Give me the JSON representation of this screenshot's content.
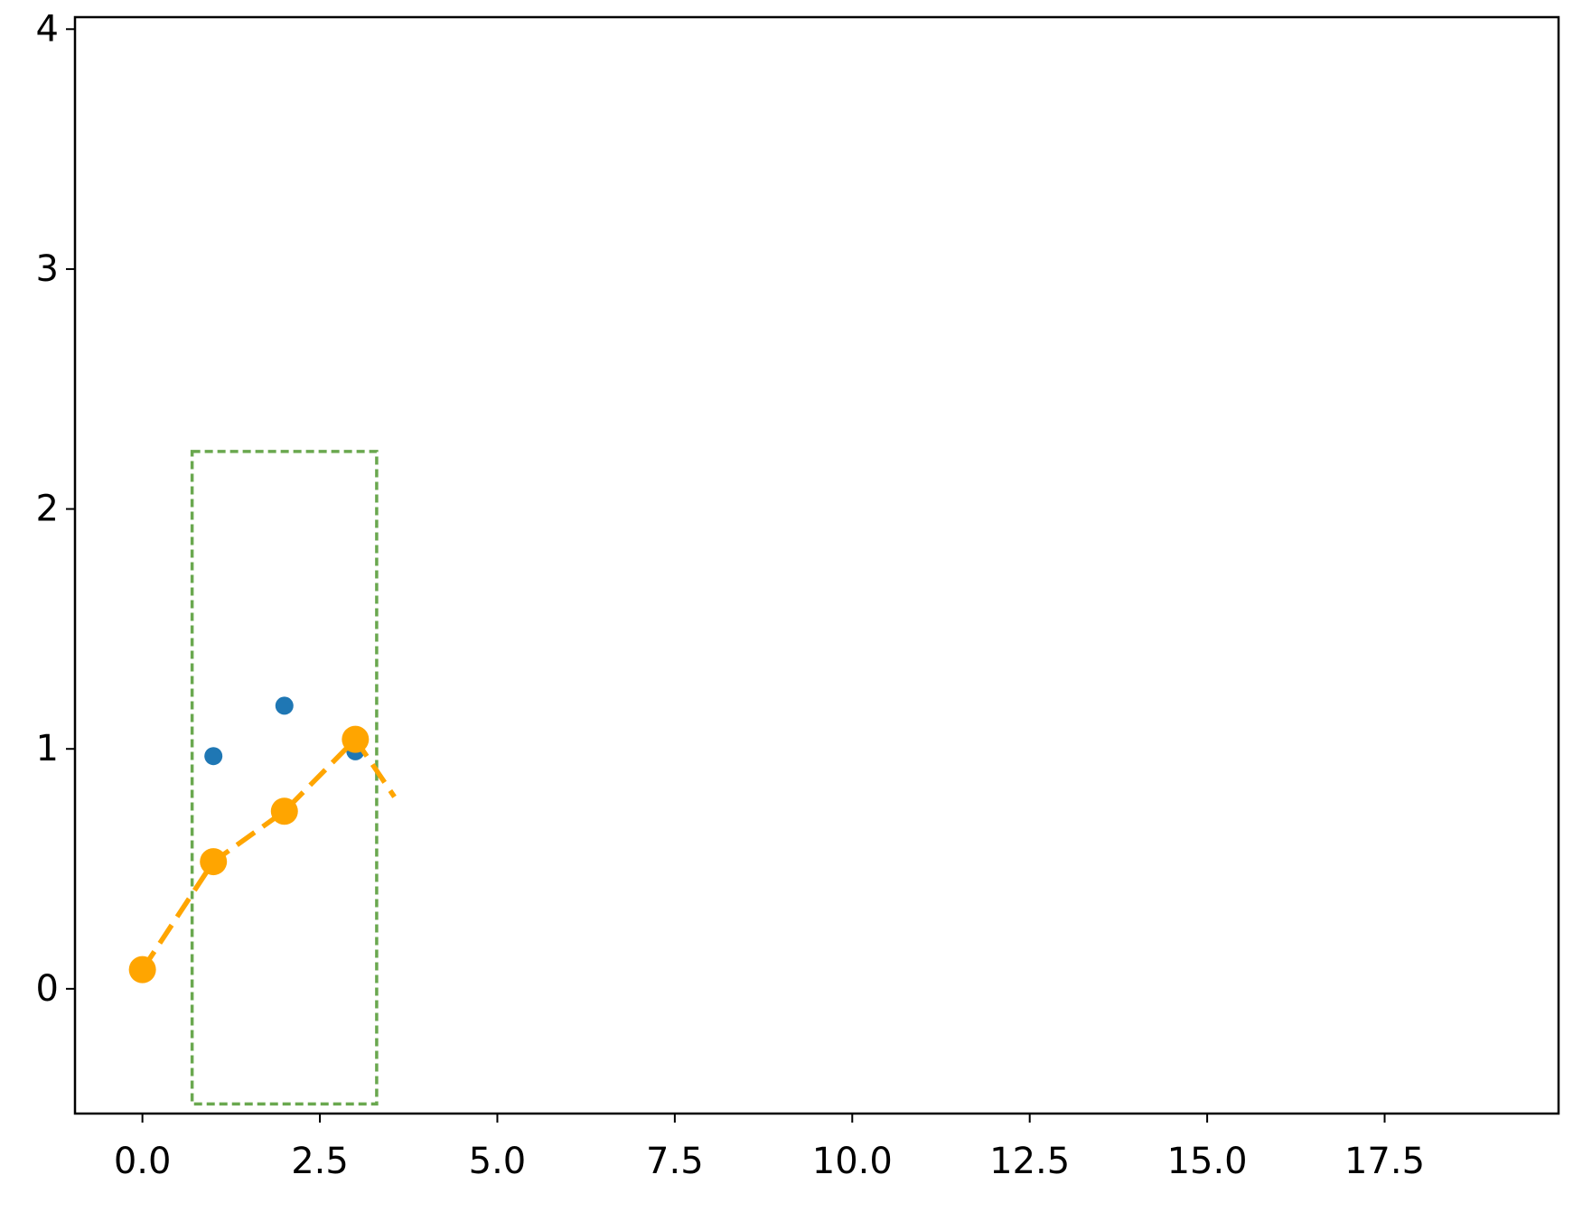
{
  "chart_data": {
    "type": "line",
    "xlim": [
      -0.95,
      19.95
    ],
    "ylim": [
      -0.52,
      4.05
    ],
    "xticks": [
      {
        "value": 0,
        "label": "0.0"
      },
      2.5,
      {
        "value": 5,
        "label": "5.0"
      },
      7.5,
      {
        "value": 10,
        "label": "10.0"
      },
      12.5,
      {
        "value": 15,
        "label": "15.0"
      },
      17.5
    ],
    "yticks": [
      0,
      1,
      2,
      3,
      4
    ],
    "grid": false,
    "series": [
      {
        "type": "scatter",
        "color": "#1f77b4",
        "x": [
          1,
          2,
          3
        ],
        "values": [
          0.97,
          1.18,
          0.99
        ]
      },
      {
        "type": "line",
        "color": "#ffa500",
        "dashed": true,
        "x": [
          0,
          1,
          2,
          3,
          3.55
        ],
        "values": [
          0.08,
          0.53,
          0.74,
          1.04,
          0.8
        ],
        "markers": [
          true,
          true,
          true,
          true,
          false
        ]
      }
    ],
    "rectangle": {
      "x": [
        0.7,
        3.3
      ],
      "y": [
        -0.48,
        2.24
      ],
      "color": "#6aa84f",
      "dashed": true
    }
  }
}
